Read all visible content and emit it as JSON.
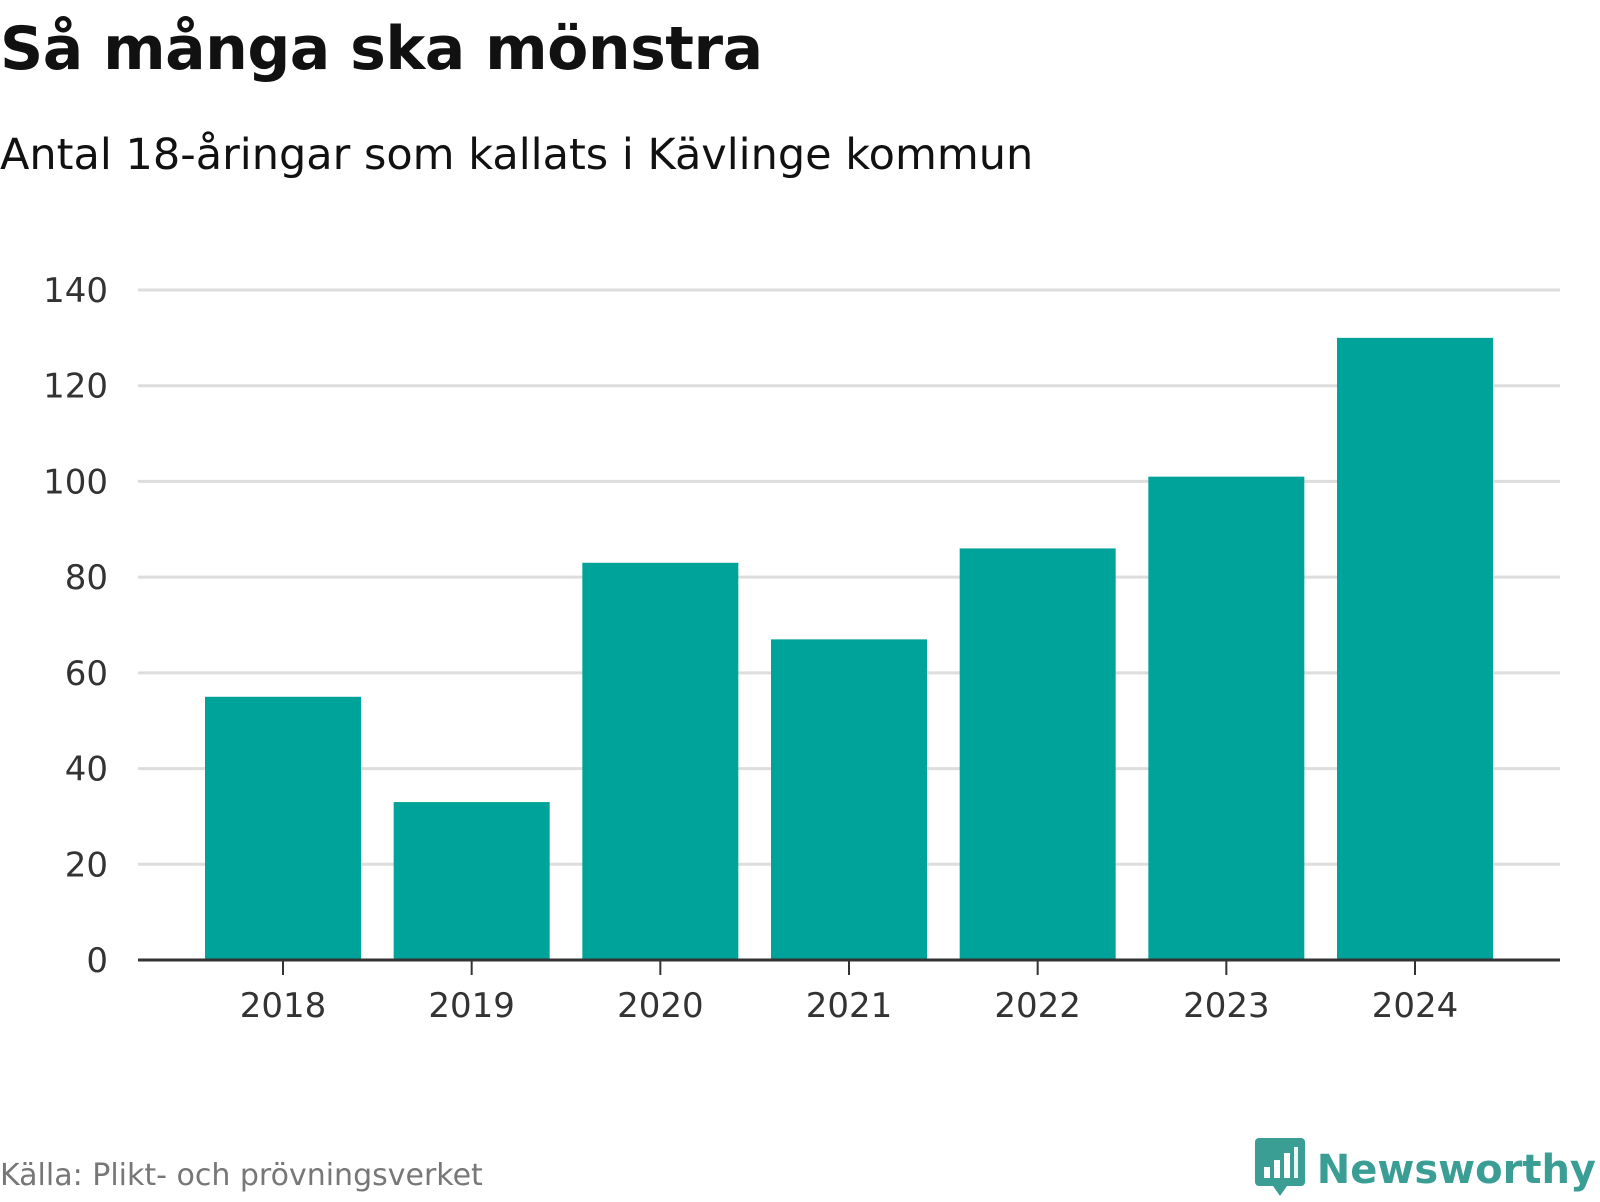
{
  "title": "Så många ska mönstra",
  "subtitle": "Antal 18-åringar som kallats i Kävlinge kommun",
  "source": "Källa: Plikt- och prövningsverket",
  "brand": {
    "name": "Newsworthy",
    "color": "#3a9e95",
    "icon": "newsworthy-logo-icon"
  },
  "colors": {
    "bar": "#00a39a",
    "grid": "#dddddd",
    "axis": "#333333"
  },
  "chart_data": {
    "type": "bar",
    "title": "Så många ska mönstra",
    "subtitle": "Antal 18-åringar som kallats i Kävlinge kommun",
    "categories": [
      "2018",
      "2019",
      "2020",
      "2021",
      "2022",
      "2023",
      "2024"
    ],
    "values": [
      55,
      33,
      83,
      67,
      86,
      101,
      130
    ],
    "xlabel": "",
    "ylabel": "",
    "ylim": [
      0,
      140
    ],
    "yticks": [
      0,
      20,
      40,
      60,
      80,
      100,
      120,
      140
    ],
    "grid": true,
    "legend": "none"
  }
}
